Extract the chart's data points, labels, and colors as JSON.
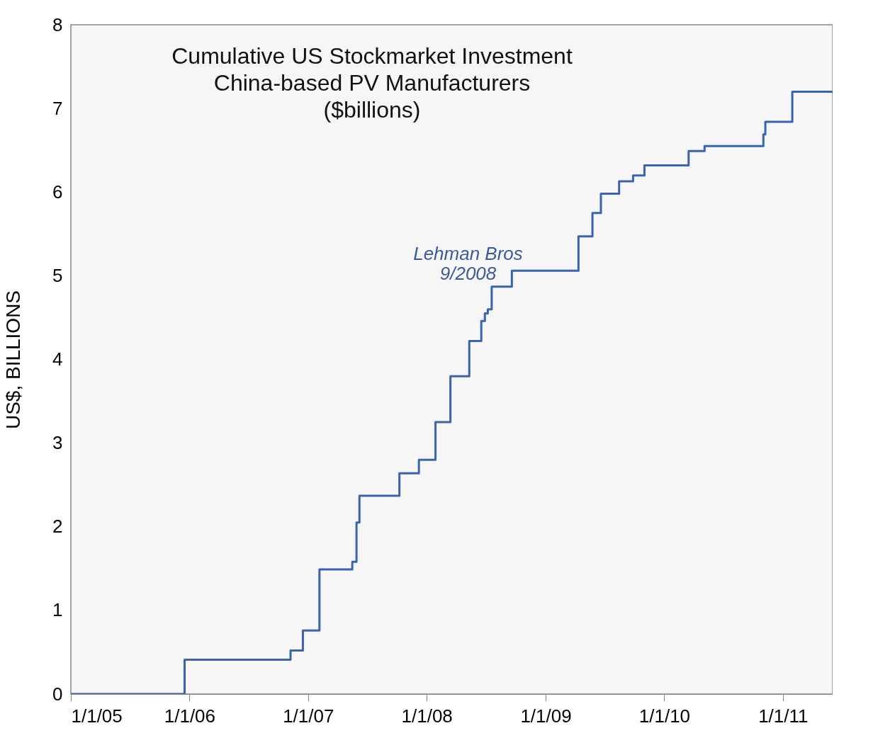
{
  "chart_data": {
    "type": "step",
    "title": "Cumulative US Stockmarket Investment\nChina-based PV Manufacturers\n($billions)",
    "ylabel": "US$, BILLIONS",
    "x": [
      "2005-01-01",
      "2005-12-17",
      "2006-11-08",
      "2006-12-16",
      "2007-02-05",
      "2007-05-17",
      "2007-05-30",
      "2007-06-08",
      "2007-10-09",
      "2007-12-08",
      "2008-01-28",
      "2008-03-14",
      "2008-05-11",
      "2008-06-17",
      "2008-06-28",
      "2008-07-07",
      "2008-07-19",
      "2008-09-19",
      "2009-04-12",
      "2009-05-25",
      "2009-06-20",
      "2009-08-15",
      "2009-09-27",
      "2009-11-01",
      "2010-03-17",
      "2010-05-05",
      "2010-11-02",
      "2010-11-08",
      "2011-01-30",
      "2011-06-03"
    ],
    "series": [
      {
        "color": "#3a64b0",
        "values": [
          0,
          0.41,
          0.52,
          0.76,
          1.49,
          1.58,
          2.05,
          2.37,
          2.64,
          2.8,
          3.25,
          3.8,
          4.22,
          4.46,
          4.55,
          4.6,
          4.87,
          5.06,
          5.47,
          5.75,
          5.98,
          6.13,
          6.2,
          6.32,
          6.49,
          6.55,
          6.69,
          6.84,
          7.2,
          7.2
        ]
      }
    ],
    "xlim": [
      "2005-01-01",
      "2011-06-03"
    ],
    "xticks": [
      {
        "value": "2005-01-01",
        "label": "1/1/05"
      },
      {
        "value": "2006-01-01",
        "label": "1/1/06"
      },
      {
        "value": "2007-01-01",
        "label": "1/1/07"
      },
      {
        "value": "2008-01-01",
        "label": "1/1/08"
      },
      {
        "value": "2009-01-01",
        "label": "1/1/09"
      },
      {
        "value": "2010-01-01",
        "label": "1/1/10"
      },
      {
        "value": "2011-01-01",
        "label": "1/1/11"
      }
    ],
    "ylim": [
      0,
      8
    ],
    "yticks": [
      0,
      1,
      2,
      3,
      4,
      5,
      6,
      7,
      8
    ],
    "annotations": [
      {
        "text": "Lehman Bros\n9/2008",
        "x": "2008-09-15",
        "y": 5.06
      }
    ],
    "grid": false,
    "marker": "none",
    "line_style": "solid"
  }
}
